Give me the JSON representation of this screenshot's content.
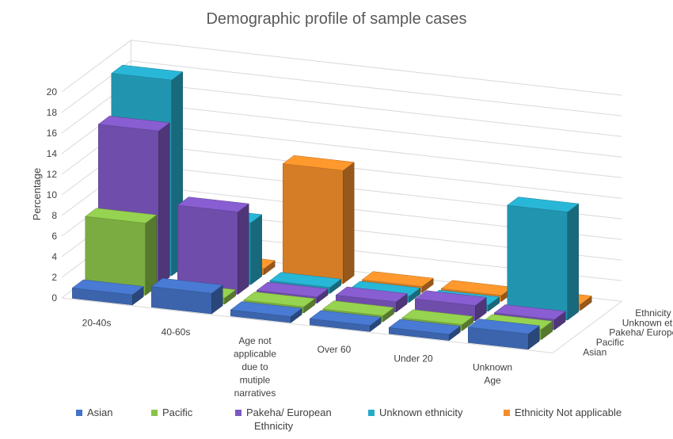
{
  "chart_data": {
    "type": "bar",
    "title": "Demographic profile of sample cases",
    "ylabel": "Percentage",
    "zlabel": "Ethnicity",
    "ylim": [
      0,
      20
    ],
    "yticks": [
      "0",
      "2",
      "4",
      "6",
      "8",
      "10",
      "12",
      "14",
      "16",
      "18",
      "20"
    ],
    "categories": [
      "20-40s",
      "40-60s",
      "Age not applicable due to mutiple narratives",
      "Over 60",
      "Under 20",
      "Unknown Age"
    ],
    "category_lines": [
      [
        "20-40s"
      ],
      [
        "40-60s"
      ],
      [
        "Age not",
        "applicable",
        "due to",
        "mutiple",
        "narratives"
      ],
      [
        "Over 60"
      ],
      [
        "Under 20"
      ],
      [
        "Unknown",
        "Age"
      ]
    ],
    "depth_labels": [
      "Asian",
      "Pacific",
      "Pakeha/ European",
      "Unknown ethnicity",
      "Ethnicity Not applicable"
    ],
    "series": [
      {
        "name": "Asian",
        "color": "#4472C4",
        "values": [
          1,
          2,
          0,
          0,
          0,
          1.5
        ]
      },
      {
        "name": "Pacific",
        "color": "#8BC34A",
        "values": [
          7,
          0,
          0,
          0,
          0,
          1
        ]
      },
      {
        "name": "Pakeha/ European",
        "color": "#7E57C2",
        "values": [
          15,
          8,
          0,
          1,
          1.5,
          1
        ]
      },
      {
        "name": "Unknown ethnicity",
        "color": "#26A9C8",
        "values": [
          19,
          6,
          0,
          0,
          0,
          10.5
        ]
      },
      {
        "name": "Ethnicity Not applicable",
        "color": "#F28E2B",
        "values": [
          0,
          0,
          11,
          0,
          0,
          0
        ]
      }
    ],
    "grid": true,
    "legend_position": "bottom"
  }
}
